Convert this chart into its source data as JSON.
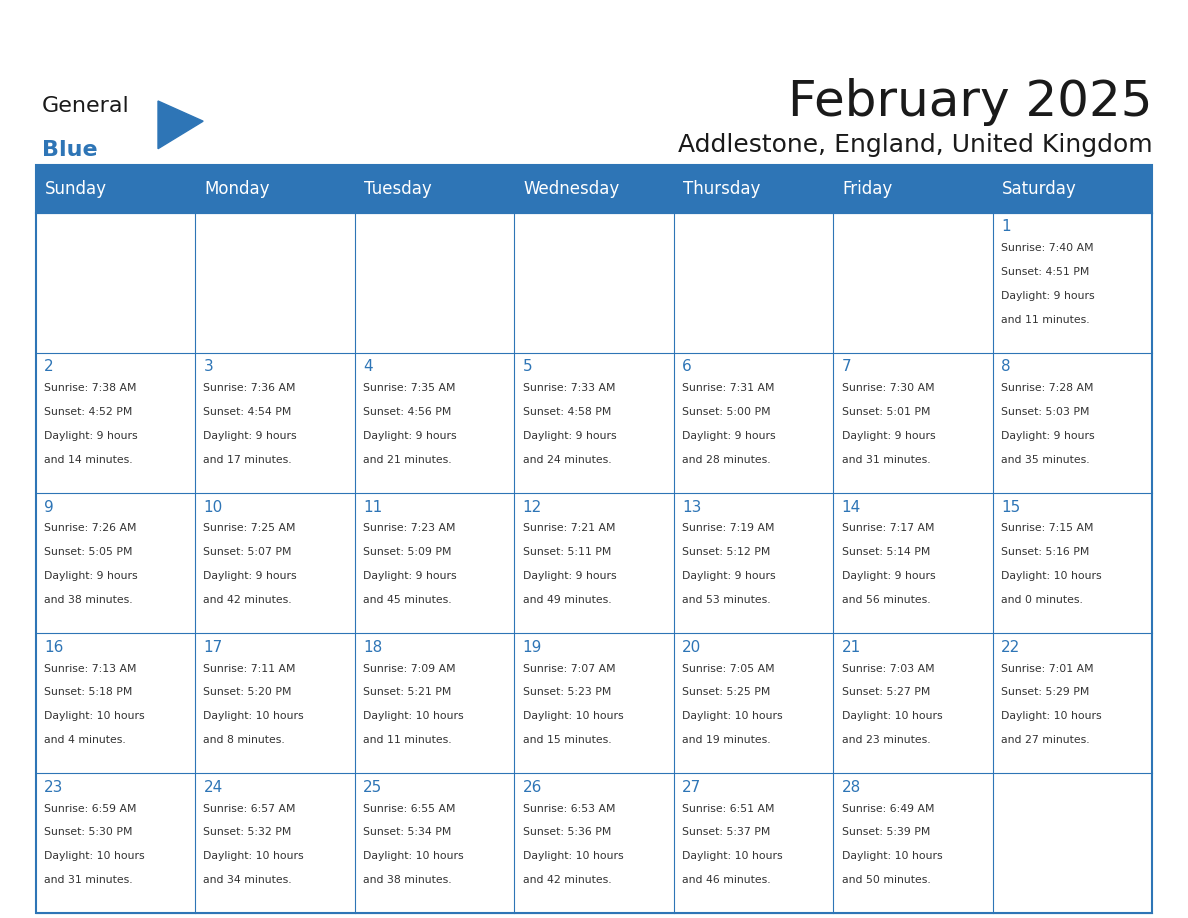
{
  "title": "February 2025",
  "subtitle": "Addlestone, England, United Kingdom",
  "header_bg": "#2E75B6",
  "header_text_color": "#FFFFFF",
  "cell_bg": "#FFFFFF",
  "border_color": "#2E75B6",
  "day_headers": [
    "Sunday",
    "Monday",
    "Tuesday",
    "Wednesday",
    "Thursday",
    "Friday",
    "Saturday"
  ],
  "title_color": "#1a1a1a",
  "subtitle_color": "#1a1a1a",
  "day_number_color": "#2E75B6",
  "cell_text_color": "#333333",
  "weeks": [
    [
      {
        "day": "",
        "info": ""
      },
      {
        "day": "",
        "info": ""
      },
      {
        "day": "",
        "info": ""
      },
      {
        "day": "",
        "info": ""
      },
      {
        "day": "",
        "info": ""
      },
      {
        "day": "",
        "info": ""
      },
      {
        "day": "1",
        "info": "Sunrise: 7:40 AM\nSunset: 4:51 PM\nDaylight: 9 hours\nand 11 minutes."
      }
    ],
    [
      {
        "day": "2",
        "info": "Sunrise: 7:38 AM\nSunset: 4:52 PM\nDaylight: 9 hours\nand 14 minutes."
      },
      {
        "day": "3",
        "info": "Sunrise: 7:36 AM\nSunset: 4:54 PM\nDaylight: 9 hours\nand 17 minutes."
      },
      {
        "day": "4",
        "info": "Sunrise: 7:35 AM\nSunset: 4:56 PM\nDaylight: 9 hours\nand 21 minutes."
      },
      {
        "day": "5",
        "info": "Sunrise: 7:33 AM\nSunset: 4:58 PM\nDaylight: 9 hours\nand 24 minutes."
      },
      {
        "day": "6",
        "info": "Sunrise: 7:31 AM\nSunset: 5:00 PM\nDaylight: 9 hours\nand 28 minutes."
      },
      {
        "day": "7",
        "info": "Sunrise: 7:30 AM\nSunset: 5:01 PM\nDaylight: 9 hours\nand 31 minutes."
      },
      {
        "day": "8",
        "info": "Sunrise: 7:28 AM\nSunset: 5:03 PM\nDaylight: 9 hours\nand 35 minutes."
      }
    ],
    [
      {
        "day": "9",
        "info": "Sunrise: 7:26 AM\nSunset: 5:05 PM\nDaylight: 9 hours\nand 38 minutes."
      },
      {
        "day": "10",
        "info": "Sunrise: 7:25 AM\nSunset: 5:07 PM\nDaylight: 9 hours\nand 42 minutes."
      },
      {
        "day": "11",
        "info": "Sunrise: 7:23 AM\nSunset: 5:09 PM\nDaylight: 9 hours\nand 45 minutes."
      },
      {
        "day": "12",
        "info": "Sunrise: 7:21 AM\nSunset: 5:11 PM\nDaylight: 9 hours\nand 49 minutes."
      },
      {
        "day": "13",
        "info": "Sunrise: 7:19 AM\nSunset: 5:12 PM\nDaylight: 9 hours\nand 53 minutes."
      },
      {
        "day": "14",
        "info": "Sunrise: 7:17 AM\nSunset: 5:14 PM\nDaylight: 9 hours\nand 56 minutes."
      },
      {
        "day": "15",
        "info": "Sunrise: 7:15 AM\nSunset: 5:16 PM\nDaylight: 10 hours\nand 0 minutes."
      }
    ],
    [
      {
        "day": "16",
        "info": "Sunrise: 7:13 AM\nSunset: 5:18 PM\nDaylight: 10 hours\nand 4 minutes."
      },
      {
        "day": "17",
        "info": "Sunrise: 7:11 AM\nSunset: 5:20 PM\nDaylight: 10 hours\nand 8 minutes."
      },
      {
        "day": "18",
        "info": "Sunrise: 7:09 AM\nSunset: 5:21 PM\nDaylight: 10 hours\nand 11 minutes."
      },
      {
        "day": "19",
        "info": "Sunrise: 7:07 AM\nSunset: 5:23 PM\nDaylight: 10 hours\nand 15 minutes."
      },
      {
        "day": "20",
        "info": "Sunrise: 7:05 AM\nSunset: 5:25 PM\nDaylight: 10 hours\nand 19 minutes."
      },
      {
        "day": "21",
        "info": "Sunrise: 7:03 AM\nSunset: 5:27 PM\nDaylight: 10 hours\nand 23 minutes."
      },
      {
        "day": "22",
        "info": "Sunrise: 7:01 AM\nSunset: 5:29 PM\nDaylight: 10 hours\nand 27 minutes."
      }
    ],
    [
      {
        "day": "23",
        "info": "Sunrise: 6:59 AM\nSunset: 5:30 PM\nDaylight: 10 hours\nand 31 minutes."
      },
      {
        "day": "24",
        "info": "Sunrise: 6:57 AM\nSunset: 5:32 PM\nDaylight: 10 hours\nand 34 minutes."
      },
      {
        "day": "25",
        "info": "Sunrise: 6:55 AM\nSunset: 5:34 PM\nDaylight: 10 hours\nand 38 minutes."
      },
      {
        "day": "26",
        "info": "Sunrise: 6:53 AM\nSunset: 5:36 PM\nDaylight: 10 hours\nand 42 minutes."
      },
      {
        "day": "27",
        "info": "Sunrise: 6:51 AM\nSunset: 5:37 PM\nDaylight: 10 hours\nand 46 minutes."
      },
      {
        "day": "28",
        "info": "Sunrise: 6:49 AM\nSunset: 5:39 PM\nDaylight: 10 hours\nand 50 minutes."
      },
      {
        "day": "",
        "info": ""
      }
    ]
  ],
  "logo_general_color": "#1a1a1a",
  "logo_blue_color": "#2E75B6",
  "figsize": [
    11.88,
    9.18
  ]
}
